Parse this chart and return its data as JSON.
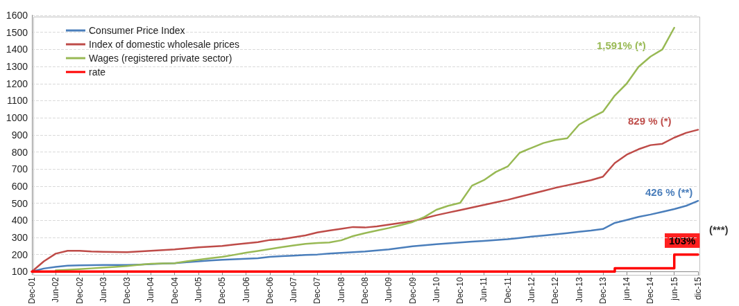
{
  "chart_data": {
    "type": "line",
    "categories": [
      "Dec-01",
      null,
      "Jun-02",
      null,
      "Dec-02",
      null,
      "Jun-03",
      null,
      "Dec-03",
      null,
      "Jun-04",
      null,
      "Dec-04",
      null,
      "Jun-05",
      null,
      "Dec-05",
      null,
      "Jun-06",
      null,
      "Dec-06",
      null,
      "Jun-07",
      null,
      "Dec-07",
      null,
      "Jun-08",
      null,
      "Dec-08",
      null,
      "Jun-09",
      null,
      "Dec-09",
      null,
      "Jun-10",
      null,
      "Dec-10",
      null,
      "Jun-11",
      null,
      "Dec-11",
      null,
      "Jun-12",
      null,
      "Dec-12",
      null,
      "Jun-13",
      null,
      "Dec-13",
      null,
      "jun-14",
      null,
      "Dec-14",
      null,
      "jun-15",
      null,
      "dic-15"
    ],
    "series": [
      {
        "name": "Consumer Price Index",
        "color": "#4a7ebb",
        "values": [
          100,
          118,
          128,
          135,
          137,
          138,
          139,
          139,
          139,
          141,
          144,
          147,
          149,
          155,
          160,
          165,
          169,
          172,
          175,
          178,
          186,
          190,
          193,
          197,
          200,
          206,
          210,
          214,
          218,
          224,
          230,
          239,
          248,
          254,
          260,
          265,
          270,
          275,
          280,
          285,
          290,
          297,
          305,
          311,
          318,
          325,
          333,
          340,
          349,
          385,
          402,
          420,
          434,
          450,
          466,
          485,
          514
        ]
      },
      {
        "name": "Index of domestic wholesale prices",
        "color": "#be4b48",
        "values": [
          100,
          160,
          205,
          222,
          222,
          218,
          216,
          215,
          214,
          218,
          222,
          226,
          230,
          236,
          242,
          246,
          250,
          258,
          265,
          272,
          285,
          290,
          301,
          312,
          329,
          340,
          350,
          361,
          358,
          365,
          375,
          385,
          395,
          412,
          430,
          445,
          460,
          475,
          490,
          505,
          520,
          538,
          555,
          572,
          590,
          605,
          620,
          635,
          655,
          735,
          784,
          816,
          840,
          848,
          884,
          912,
          930
        ]
      },
      {
        "name": "Wages (registered private sector)",
        "color": "#98b954",
        "values": [
          null,
          null,
          107,
          110,
          114,
          119,
          124,
          128,
          133,
          140,
          146,
          148,
          149,
          160,
          169,
          178,
          186,
          198,
          211,
          221,
          232,
          243,
          253,
          262,
          267,
          270,
          283,
          308,
          325,
          340,
          355,
          372,
          390,
          420,
          462,
          485,
          502,
          603,
          635,
          683,
          715,
          795,
          824,
          852,
          870,
          880,
          960,
          1000,
          1035,
          1130,
          1200,
          1298,
          1358,
          1400,
          1527,
          null,
          null
        ]
      },
      {
        "name": "rate",
        "type": "step",
        "color": "#ff0000",
        "values": [
          100,
          100,
          100,
          100,
          100,
          100,
          100,
          100,
          100,
          100,
          100,
          100,
          100,
          100,
          100,
          100,
          100,
          100,
          100,
          100,
          100,
          100,
          100,
          100,
          100,
          100,
          100,
          100,
          100,
          100,
          100,
          100,
          100,
          100,
          100,
          100,
          100,
          100,
          100,
          100,
          100,
          100,
          100,
          100,
          100,
          100,
          100,
          100,
          100,
          120,
          120,
          120,
          120,
          120,
          200,
          200,
          200
        ]
      }
    ],
    "ylim": [
      100,
      1600
    ],
    "yticks": [
      100,
      200,
      300,
      400,
      500,
      600,
      700,
      800,
      900,
      1000,
      1100,
      1200,
      1300,
      1400,
      1500,
      1600
    ],
    "grid": "y",
    "legend": "top left",
    "marker": "none",
    "line_style": "solid",
    "annotations": [
      "1,591% (*)",
      "829 % (*)",
      "426 % (**)",
      "103%",
      "(***)"
    ]
  }
}
